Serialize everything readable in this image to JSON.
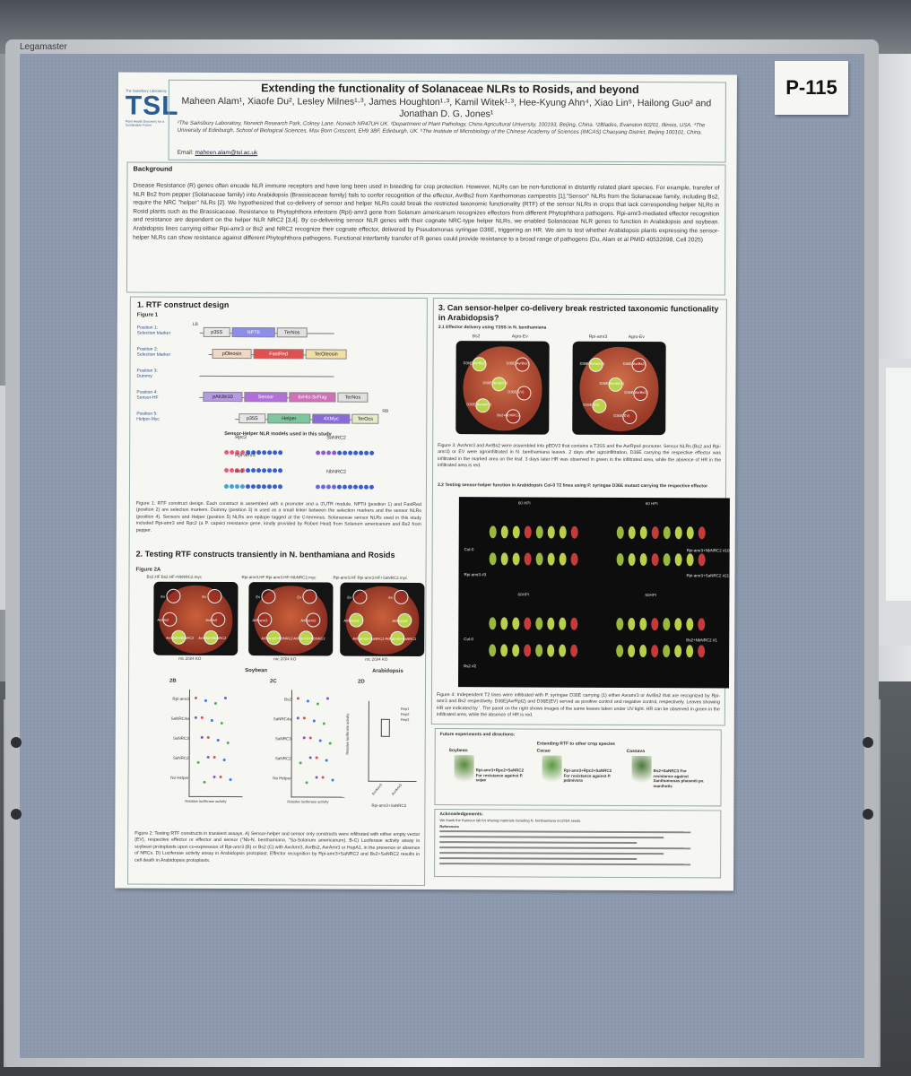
{
  "board": {
    "brand": "Legamaster",
    "poster_number": "P-115"
  },
  "poster": {
    "logo": {
      "institute": "The Sainsbury Laboratory",
      "acronym": "TSL",
      "tagline": "Plant Health Discovery for a Sustainable Future"
    },
    "title": "Extending the functionality of Solanaceae NLRs to Rosids, and beyond",
    "authors": "Maheen Alam¹, Xiaofe Du², Lesley Milnes¹·³, James Houghton¹·³, Kamil Witek¹·³, Hee-Kyung Ahn⁴, Xiao Lin⁵, Hailong Guo² and Jonathan D. G. Jones¹",
    "affiliations": "¹The Sainsbury Laboratory, Norwich Research Park, Colney Lane. Norwich NR47UH UK. ²Department of Plant Pathology, China Agricultural University, 100193, Beijing, China. ³2Blades, Evanston 60201, Illinois, USA. ⁴The University of Edinburgh, School of Biological Sciences, Max Born Crescent, EH9 3BF, Edinburgh, UK. ⁵The Institute of Microbiology of the Chinese Academy of Sciences (IMCAS) Chaoyang District, Beijing 100101, China.",
    "email_label": "Email:",
    "email": "maheen.alam@tsl.ac.uk",
    "background": {
      "title": "Background",
      "text": "Disease Resistance (R) genes often encode NLR immune receptors and have long been used in breeding for crop protection. However, NLRs can be non-functional in distantly related plant species. For example, transfer of NLR Bs2 from pepper (Solanaceae family) into Arabidopsis (Brassicaceae family) fails to confer recognition of the effector, AvrBs2 from Xanthomonas campestris [1].\"Sensor\" NLRs from the Solanaceae family, including Bs2, require the NRC \"helper\" NLRs [2]. We hypothesized that co-delivery of sensor and helper NLRs could break the restricted taxonomic functionality (RTF) of the sensor NLRs in crops that lack corresponding helper NLRs in Rosid plants such as the Brassicaceae. Resistance to Phytophthora infestans (Rpi)-amr3 gene from Solanum americanum recognizes effectors from different Phytophthora pathogens. Rpi-amr3-mediated effector recognition and resistance are dependent on the helper NLR NRC2 [3,4]. By co-delivering sensor NLR genes with their cognate NRC-type helper NLRs, we enabled Solanaceae NLR genes to function in Arabidopsis and soybean. Arabidopsis lines carrying either Rpi-amr3 or Bs2 and NRC2 recognize their cognate effector, delivered by Pseudomonas syringae D36E, triggering an HR. We aim to test whether Arabidopsis plants expressing the sensor-helper NLRs can show resistance against different Phytophthora pathogens. Functional interfamily transfer of R genes could provide resistance to a broad range of pathogens (Du, Alam et al PMID 40532698, Cell 2025)"
    },
    "section1": {
      "title": "1. RTF construct design",
      "figure": "Figure 1",
      "positions": [
        {
          "label": "Position 1:\nSelection Marker",
          "parts": [
            "LB",
            "p35S",
            "NPTII",
            "TerNos"
          ]
        },
        {
          "label": "Position 2:\nSelection Marker",
          "parts": [
            "pOleosin",
            "FastRed",
            "TerOleosin"
          ]
        },
        {
          "label": "Position 3:\nDummy",
          "parts": []
        },
        {
          "label": "Position 4:\nSensor-HF",
          "parts": [
            "pAtUbi10",
            "Sensor",
            "6xHis-3xFlag",
            "TerNos"
          ]
        },
        {
          "label": "Position 5:\nHelper-Myc",
          "parts": [
            "p35S",
            "Helper",
            "4XMyc",
            "TerOcs",
            "RB"
          ]
        }
      ],
      "models_title": "Sensor-Helper NLR models used in this study",
      "models": [
        "Rpc2",
        "SaNRC2",
        "Rpi-amr3",
        "Bs2",
        "NbNRC2"
      ],
      "caption": "Figure 1: RTF construct design. Each construct is assembled with a promoter and a 3'UTR module. NPTII (position 1) and FastRed (position 2) are selection markers. Dummy (position 3) is used as a small linker between the selection markers and the sensor NLRs (position 4). Sensors and Helper (position 5) NLRs are epitope tagged at the C-terminus. Solanaceae sensor NLRs used in this study included Rpi-amr3 and Rpc2 (a P. capsici resistance gene, kindly provided by Robert Heal) from Solanum americanum and Bs2 from pepper."
    },
    "section2": {
      "title": "2. Testing RTF constructs transiently in N. benthamiana and Rosids",
      "figure": "Figure 2A",
      "leaf_headers": [
        "Bs2.HF",
        "Bs2.HF+NbNRC2.myc",
        "Rpi-amr3.HF",
        "Rpi-amr3.HF+NbNRC2.myc",
        "Rpi-amr3.HF",
        "Rpi-amr3.HF+SaNRC2.myc"
      ],
      "leaf_labels": [
        [
          "Ev",
          "Ev",
          "AvrBs2",
          "AvrBs2",
          "AvrBs2+NbNRC2",
          "AvrBs2+NbNRC2"
        ],
        [
          "Ev",
          "Ev",
          "AVRamr3",
          "AVRamr3",
          "AVRamr3+NbNRC2",
          "AVRamr3+NbNRC2"
        ],
        [
          "Ev",
          "Ev",
          "AVRamr3",
          "AVRamr3",
          "AVRamr3+SaNRC2",
          "AVRamr3+SaNRC2"
        ]
      ],
      "leaf_footers": [
        "nrc 2/3/4 KO",
        "nrc 2/3/4 KO",
        "nrc 2/3/4 KO"
      ],
      "panel_labels": [
        "2B",
        "2C",
        "2D"
      ],
      "panel_titles": [
        "Soybean",
        "Arabidopsis"
      ],
      "b_rows": [
        "Rpi-amr3",
        "SaNRC4a",
        "SaNRC3",
        "SaNRC2",
        "No Helper"
      ],
      "c_rows": [
        "Bs2",
        "SaNRC4a",
        "SaNRC3",
        "SaNRC2",
        "No Helper"
      ],
      "xlabel": "Relative luciferase activity",
      "d_ylabel": "Relative luciferase activity",
      "d_categories": [
        "AvrAmr3",
        "AvrAmr3"
      ],
      "d_xlabel": "Rpi-amr3+SaNRC2",
      "legend_d": [
        "Rep1",
        "Rep2",
        "Rep3"
      ],
      "caption": "Figure 2: Testing RTF constructs in transient assays. A) Sensor-helper and sensor only constructs were infiltrated with either empty vector (EV), respective effector or effector and sensor (\"Nb-N. benthamiana, \"Sa-Solanum americanum). B-C) Luciferase activity assay in soybean protoplasts upon co-expression of Rpi-amr3 (B) or Bs2 (C) with AvrAmr3, AvrBs2, AvrAmr3 or HopA1, in the presence or absence of NRCs. D) Luciferase activity assay in Arabidopsis protoplast. Effector recognition by Rpi-amr3+SaNRC2 and Bs2+SaNRC2 results in cell death in Arabidopsis protoplasts."
    },
    "section3": {
      "title": "3. Can sensor-helper co-delivery break restricted taxonomic functionality in Arabidopsis?",
      "sub1": "3.1 Effector delivery using T3SS in N. benthamiana",
      "leaf_headers": [
        "Bs2",
        "Agro-Ev",
        "Rpi-amr3",
        "Agro-Ev"
      ],
      "leaf1_labels": [
        "D36E(AvrBs2)",
        "D36E(AvrBs2)",
        "D36E(Avramr3)",
        "D36E(EV)",
        "D36E(Avramr3)",
        "Bs2+NbNRC2"
      ],
      "leaf2_labels": [
        "D36E(Avramr3)",
        "D36E(AvrBs2)",
        "D36E(Avramr3)",
        "D36E(AvrBs2)",
        "D36E(EV)",
        "D36E(EV)"
      ],
      "caption1": "Figure 3: AvrAmr3 and AvrBs2 were assembled into pEDV3 that contains a T3SS and the AvrRps4 promoter. Sensor NLRs (Bs2 and Rpi-amr3) or EV were agroinfiltrated in N. benthamiana leaves. 2 days after agroinfiltration, D36E carrying the respective effector was infiltrated in the marked area on the leaf. 3 days later HR was observed in green in the infiltrated area, while the absence of HR in the infiltrated area is red.",
      "sub2": "3.2 Testing sensor-helper function in Arabidopsis Col-0 T2 lines using P. syringae D36E mutant carrying the respective effector",
      "plate_time": [
        "60 HPI",
        "60 HPI",
        "60HPI",
        "60HPI"
      ],
      "plate_rows": [
        "Col-0",
        "Rpi-amr3 #3",
        "Rpi-amr3+NbNRC2 #10",
        "Rpi-amr3+SaNRC2 #21",
        "Col-0",
        "Bs2 #2",
        "Bs2+NbNRC2 #1"
      ],
      "caption2": "Figure 4: Independent T2 lines were infiltrated with P. syringae D36E carrying (1) either Avramr3 or AvrBs2 that are recognized by Rpi-amr3 and Bs2 respectively. D36E(AvrRpt2) and D36E(EV) served as positive control and negative control, respectively. Leaves showing HR are indicated by '. The panel on the right shows images of the same leaves taken under UV light. HR can be observed in green in the infiltrated area, while the absence of HR is red.",
      "future_title": "Future experiments and directions:",
      "future_sub": "Extending RTF to other crop species",
      "crops": [
        {
          "name": "Soybean",
          "text": "Rpi-amr3+Rpc2+SaNRC2 For resistance against P. sojae"
        },
        {
          "name": "Cacao",
          "text": "Rpi-amr3+Rpc2+SaNRC2 For resistance against P. palmivora"
        },
        {
          "name": "Cassava",
          "text": "Bs2+SaNRC3 For resistance against Xanthomonas phaseoli pv. manihotis"
        }
      ],
      "ack_title": "Acknowledgements:",
      "ack_text": "We thank the Kamoun lab for sharing materials including N. benthamiana nrc2/3/4 seeds.",
      "refs_title": "References"
    }
  },
  "colors": {
    "felt": "#8c99ad",
    "poster": "#f6f6f2",
    "tsl_blue": "#2a5d94",
    "hr_green": "#b9d34a",
    "leaf_red": "#a23a2a"
  }
}
